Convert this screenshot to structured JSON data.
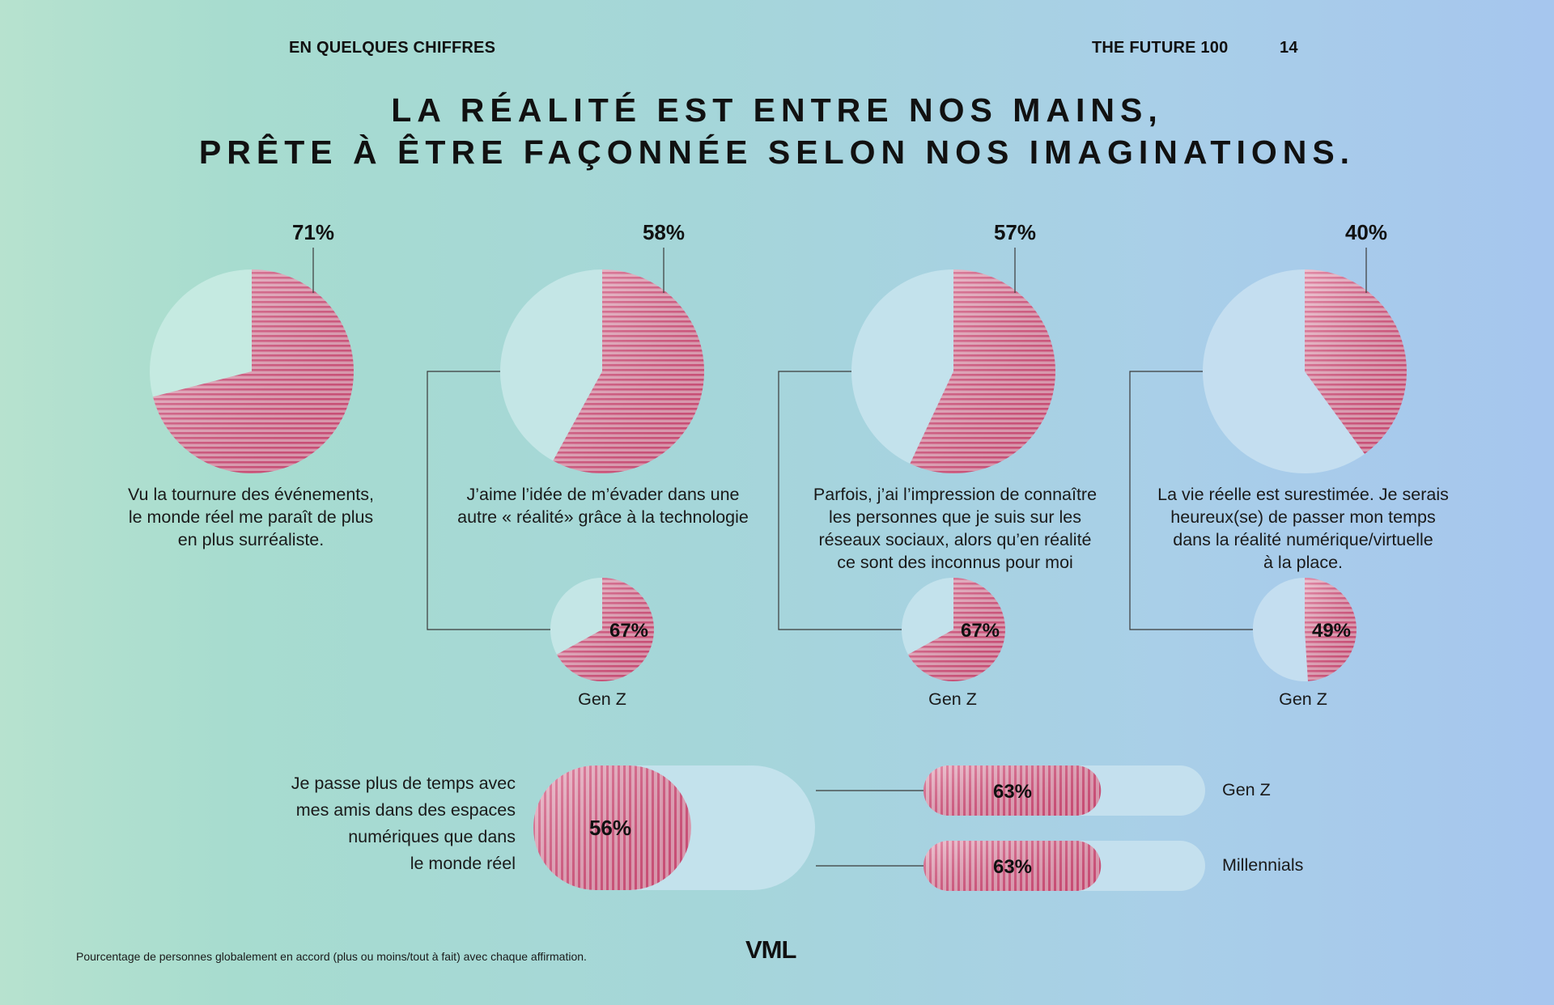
{
  "header": {
    "section": "EN QUELQUES CHIFFRES",
    "publication": "THE FUTURE 100",
    "page_number": "14"
  },
  "title": [
    "LA RÉALITÉ EST ENTRE NOS MAINS,",
    "PRÊTE À ÊTRE FAÇONNÉE SELON NOS IMAGINATIONS."
  ],
  "colors": {
    "accent": "#d9507a",
    "pale_fill": "#c3e9e0",
    "pale_fill_right": "#c4e0ee",
    "text": "#111111"
  },
  "chart_data": [
    {
      "type": "pie",
      "value": 71,
      "label": "71%",
      "caption": [
        "Vu la tournure des événements,",
        "le monde réel me paraît de plus",
        "en plus surréaliste."
      ]
    },
    {
      "type": "pie",
      "value": 58,
      "label": "58%",
      "caption": [
        "J’aime l’idée de m’évader dans une",
        "autre « réalité» grâce à la technologie"
      ],
      "sub": {
        "value": 67,
        "label": "67%",
        "group": "Gen Z"
      }
    },
    {
      "type": "pie",
      "value": 57,
      "label": "57%",
      "caption": [
        "Parfois, j’ai l’impression de connaître",
        "les personnes que je suis sur les",
        "réseaux sociaux, alors qu’en réalité",
        "ce sont des inconnus pour moi"
      ],
      "sub": {
        "value": 67,
        "label": "67%",
        "group": "Gen Z"
      }
    },
    {
      "type": "pie",
      "value": 40,
      "label": "40%",
      "caption": [
        "La vie réelle est surestimée. Je serais",
        "heureux(se) de passer mon temps",
        "dans la réalité numérique/virtuelle",
        "à la place."
      ],
      "sub": {
        "value": 49,
        "label": "49%",
        "group": "Gen Z"
      }
    },
    {
      "type": "bar",
      "question": [
        "Je passe plus de temps avec",
        "mes amis dans des espaces",
        "numériques que dans",
        "le monde réel"
      ],
      "total": {
        "value": 56,
        "label": "56%"
      },
      "breakdown": [
        {
          "name": "Gen Z",
          "value": 63,
          "label": "63%"
        },
        {
          "name": "Millennials",
          "value": 63,
          "label": "63%"
        }
      ]
    }
  ],
  "footnote": "Pourcentage de personnes globalement en accord (plus ou moins/tout à fait) avec chaque affirmation.",
  "brand": "VML"
}
